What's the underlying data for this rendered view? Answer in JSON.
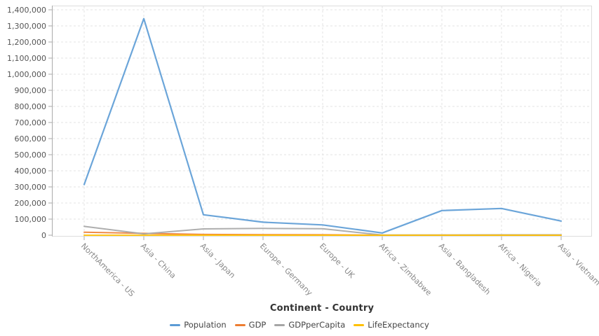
{
  "chart_data": {
    "type": "line",
    "title": "",
    "xlabel": "Continent - Country",
    "ylabel": "",
    "categories": [
      "NorthAmerica - US",
      "Asia - China",
      "Asia - Japan",
      "Europe - Germany",
      "Europe - UK",
      "Africa - Zimbabwe",
      "Asia - Bangladesh",
      "Africa - Nigeria",
      "Asia - Vietnam"
    ],
    "series": [
      {
        "name": "Population",
        "color": "#5B9BD5",
        "values": [
          315000,
          1345000,
          127000,
          81000,
          64000,
          14000,
          153000,
          166000,
          88000
        ]
      },
      {
        "name": "GDP",
        "color": "#ED7D31",
        "values": [
          18560,
          11200,
          4940,
          3470,
          2620,
          16,
          220,
          405,
          205
        ]
      },
      {
        "name": "GDPperCapita",
        "color": "#A5A5A5",
        "values": [
          55000,
          8100,
          39000,
          42000,
          40000,
          1000,
          1360,
          2180,
          2170
        ]
      },
      {
        "name": "LifeExpectancy",
        "color": "#FFC000",
        "values": [
          79,
          76,
          84,
          81,
          82,
          58,
          72,
          53,
          76
        ]
      }
    ],
    "ylim": [
      0,
      1400000
    ],
    "ytick_step": 100000,
    "ytick_labels": [
      "0",
      "100,000",
      "200,000",
      "300,000",
      "400,000",
      "500,000",
      "600,000",
      "700,000",
      "800,000",
      "900,000",
      "1,000,000",
      "1,100,000",
      "1,200,000",
      "1,300,000",
      "1,400,000"
    ],
    "grid": true,
    "legend_position": "bottom"
  },
  "colors": {
    "background": "#ffffff",
    "plot_border": "#dddddd",
    "axis_line": "#aaaaaa",
    "grid_line": "#e3e3e3",
    "y_tick_label": "#555555",
    "x_tick_label": "#888888",
    "axis_title": "#333333",
    "legend_text": "#444444"
  }
}
